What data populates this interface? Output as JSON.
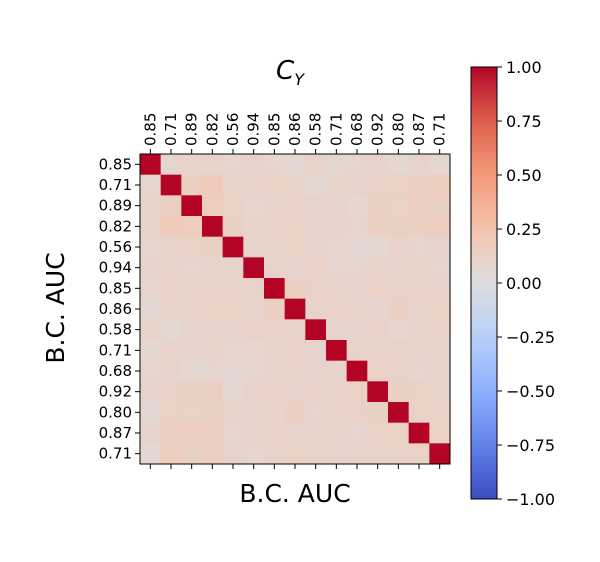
{
  "chart_data": {
    "type": "heatmap",
    "top_label": "C",
    "top_label_subscript": "Y",
    "ylabel": "B.C. AUC",
    "xlabel": "B.C. AUC",
    "row_labels": [
      "0.85",
      "0.71",
      "0.89",
      "0.82",
      "0.56",
      "0.94",
      "0.85",
      "0.86",
      "0.58",
      "0.71",
      "0.68",
      "0.92",
      "0.80",
      "0.87",
      "0.71"
    ],
    "col_labels": [
      "0.85",
      "0.71",
      "0.89",
      "0.82",
      "0.56",
      "0.94",
      "0.85",
      "0.86",
      "0.58",
      "0.71",
      "0.68",
      "0.92",
      "0.80",
      "0.87",
      "0.71"
    ],
    "colorbar": {
      "colormap": "coolwarm",
      "range": [
        -1.0,
        1.0
      ],
      "tick_labels": [
        "1.00",
        "0.75",
        "0.50",
        "0.25",
        "0.00",
        "−0.25",
        "−0.50",
        "−0.75",
        "−1.00"
      ],
      "tick_values": [
        1.0,
        0.75,
        0.5,
        0.25,
        0.0,
        -0.25,
        -0.5,
        -0.75,
        -1.0
      ]
    },
    "values": [
      [
        1.0,
        0.08,
        0.1,
        0.1,
        0.08,
        0.09,
        0.08,
        0.06,
        0.1,
        0.07,
        0.08,
        0.09,
        0.07,
        0.09,
        0.07
      ],
      [
        0.08,
        1.0,
        0.14,
        0.18,
        0.1,
        0.1,
        0.12,
        0.1,
        0.07,
        0.1,
        0.09,
        0.11,
        0.12,
        0.14,
        0.16
      ],
      [
        0.1,
        0.14,
        1.0,
        0.16,
        0.12,
        0.08,
        0.1,
        0.11,
        0.09,
        0.09,
        0.07,
        0.13,
        0.12,
        0.15,
        0.13
      ],
      [
        0.1,
        0.18,
        0.16,
        1.0,
        0.13,
        0.1,
        0.11,
        0.12,
        0.09,
        0.1,
        0.08,
        0.14,
        0.13,
        0.14,
        0.15
      ],
      [
        0.08,
        0.1,
        0.12,
        0.13,
        1.0,
        0.09,
        0.1,
        0.12,
        0.09,
        0.08,
        0.07,
        0.07,
        0.1,
        0.08,
        0.09
      ],
      [
        0.09,
        0.1,
        0.08,
        0.1,
        0.09,
        1.0,
        0.11,
        0.09,
        0.12,
        0.08,
        0.08,
        0.1,
        0.09,
        0.1,
        0.08
      ],
      [
        0.08,
        0.12,
        0.1,
        0.11,
        0.1,
        0.11,
        1.0,
        0.14,
        0.11,
        0.1,
        0.09,
        0.12,
        0.1,
        0.11,
        0.1
      ],
      [
        0.06,
        0.1,
        0.11,
        0.12,
        0.12,
        0.09,
        0.14,
        1.0,
        0.1,
        0.12,
        0.1,
        0.09,
        0.14,
        0.1,
        0.12
      ],
      [
        0.1,
        0.07,
        0.09,
        0.09,
        0.09,
        0.12,
        0.11,
        0.1,
        1.0,
        0.09,
        0.09,
        0.11,
        0.08,
        0.1,
        0.11
      ],
      [
        0.07,
        0.1,
        0.09,
        0.1,
        0.08,
        0.08,
        0.1,
        0.12,
        0.09,
        1.0,
        0.1,
        0.1,
        0.11,
        0.1,
        0.09
      ],
      [
        0.08,
        0.09,
        0.07,
        0.08,
        0.07,
        0.08,
        0.09,
        0.1,
        0.09,
        0.1,
        1.0,
        0.12,
        0.11,
        0.08,
        0.1
      ],
      [
        0.09,
        0.11,
        0.13,
        0.14,
        0.07,
        0.1,
        0.12,
        0.09,
        0.11,
        0.1,
        0.12,
        1.0,
        0.13,
        0.12,
        0.1
      ],
      [
        0.07,
        0.12,
        0.12,
        0.13,
        0.1,
        0.09,
        0.1,
        0.14,
        0.08,
        0.11,
        0.11,
        0.13,
        1.0,
        0.12,
        0.11
      ],
      [
        0.09,
        0.14,
        0.15,
        0.14,
        0.08,
        0.1,
        0.11,
        0.1,
        0.1,
        0.1,
        0.08,
        0.12,
        0.12,
        1.0,
        0.12
      ],
      [
        0.07,
        0.16,
        0.13,
        0.15,
        0.09,
        0.08,
        0.1,
        0.12,
        0.11,
        0.09,
        0.1,
        0.1,
        0.11,
        0.12,
        1.0
      ]
    ]
  }
}
